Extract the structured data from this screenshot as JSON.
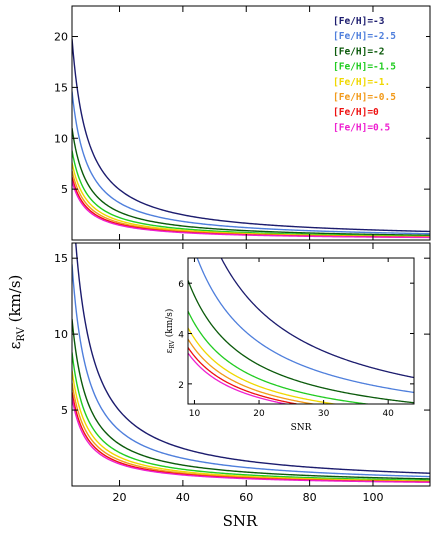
{
  "chart_data": {
    "type": "line",
    "shared": {
      "ylabel_main": "ε",
      "ylabel_sub": "RV",
      "ylabel_unit": " (km/s)",
      "xlabel": "SNR"
    },
    "series": [
      {
        "name": "[Fe/H]=-3",
        "color": "#1c1c6e",
        "k": 99
      },
      {
        "name": "[Fe/H]=-2.5",
        "color": "#4f7fdc",
        "k": 73
      },
      {
        "name": "[Fe/H]=-2",
        "color": "#0b5a0b",
        "k": 55
      },
      {
        "name": "[Fe/H]=-1.5",
        "color": "#22cc22",
        "k": 44
      },
      {
        "name": "[Fe/H]=-1.",
        "color": "#f0d800",
        "k": 38
      },
      {
        "name": "[Fe/H]=-0.5",
        "color": "#f29a1a",
        "k": 34
      },
      {
        "name": "[Fe/H]=0",
        "color": "#ee1111",
        "k": 31
      },
      {
        "name": "[Fe/H]=0.5",
        "color": "#ee20d0",
        "k": 29
      }
    ],
    "panels": [
      {
        "id": "top",
        "xlim": [
          5,
          118
        ],
        "ylim": [
          0,
          23
        ],
        "yticks": [
          5,
          10,
          15,
          20
        ],
        "xticks": [
          20,
          40,
          60,
          80,
          100
        ],
        "show_xtick_labels": false
      },
      {
        "id": "bottom",
        "xlim": [
          5,
          118
        ],
        "ylim": [
          0,
          16
        ],
        "yticks": [
          5,
          10,
          15
        ],
        "xticks": [
          20,
          40,
          60,
          80,
          100
        ],
        "show_xtick_labels": true
      },
      {
        "id": "inset",
        "xlim": [
          9,
          44
        ],
        "ylim": [
          1.2,
          7
        ],
        "yticks": [
          2,
          4,
          6
        ],
        "xticks": [
          10,
          20,
          30,
          40
        ],
        "show_xtick_labels": true,
        "xlabel": "SNR",
        "ylabel_main": "ε",
        "ylabel_sub": "RV",
        "ylabel_unit": " (km/s)"
      }
    ]
  }
}
